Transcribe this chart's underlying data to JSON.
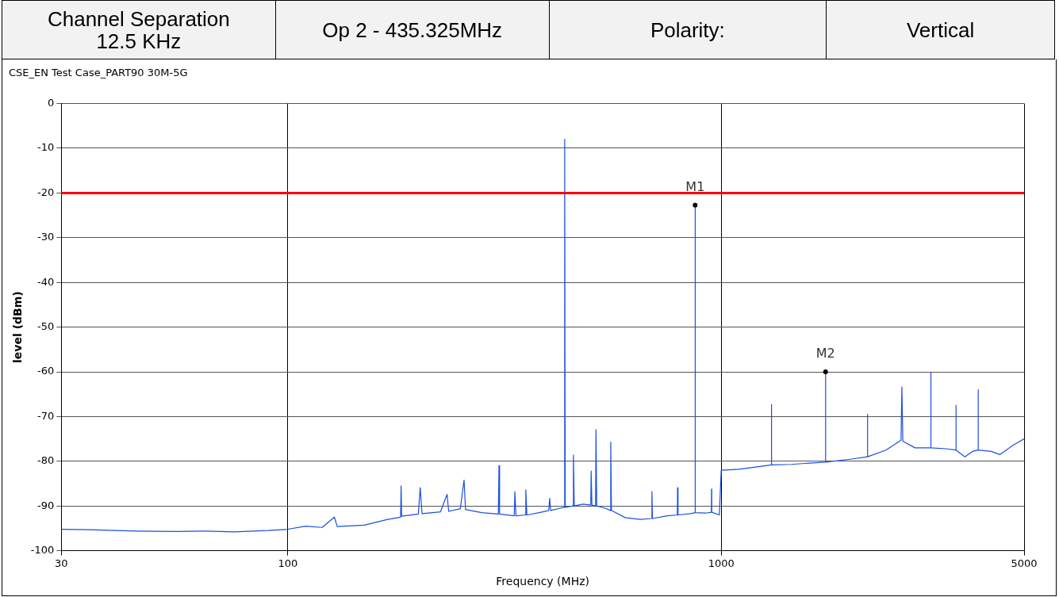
{
  "chart_data": {
    "type": "line",
    "title": "CSE_EN Test Case_PART90 30M-5G",
    "xlabel": "Frequency (MHz)",
    "ylabel": "level (dBm)",
    "log": "x",
    "grid": true,
    "legend": false,
    "xlim": [
      30,
      5000
    ],
    "xticks": [
      30,
      100,
      1000,
      5000
    ],
    "ylim": [
      -100,
      0
    ],
    "yticks": [
      0,
      -10,
      -20,
      -30,
      -40,
      -50,
      -60,
      -70,
      -80,
      -90,
      -100
    ],
    "ref_lines": [
      {
        "axis": "y",
        "value": -20,
        "color": "#ff0000"
      }
    ],
    "annotations": [
      "Channel Separation\n12.5 KHz",
      "Op 2 - 435.325MHz",
      "Polarity:",
      "Vertical",
      {
        "text": "M1",
        "x": 870.6,
        "y": -22.7
      },
      {
        "text": "M2",
        "x": 1741,
        "y": -60
      }
    ],
    "series": [
      {
        "color": "#1a4fe0",
        "x": [
          30,
          35,
          40,
          45,
          55,
          65,
          75,
          90,
          100,
          110,
          120,
          128,
          130,
          150,
          170,
          182,
          182.5,
          183,
          200,
          202,
          204,
          225,
          233,
          235,
          250,
          255,
          257,
          280,
          306,
          307,
          308,
          333,
          334,
          336,
          353,
          354,
          356,
          380,
          400,
          402,
          404,
          425,
          434,
          435.3,
          436.5,
          455,
          456,
          458,
          480,
          500,
          501,
          503,
          513,
          514,
          516,
          540,
          555,
          556,
          558,
          600,
          650,
          691,
          692,
          694,
          750,
          792,
          793,
          795,
          850,
          869.5,
          870.6,
          871.5,
          920,
          949,
          950,
          951,
          990,
          1000,
          1100,
          1200,
          1305,
          1306,
          1307,
          1450,
          1600,
          1740,
          1741,
          1742,
          2000,
          2175,
          2176,
          2177,
          2400,
          2600,
          2612,
          2625,
          2800,
          3046,
          3047,
          3048,
          3300,
          3481,
          3482,
          3483,
          3650,
          3800,
          3917,
          3918,
          3919,
          4200,
          4400,
          4700,
          5000
        ],
        "values": [
          -95.2,
          -95.3,
          -95.5,
          -95.6,
          -95.7,
          -95.6,
          -95.8,
          -95.5,
          -95.2,
          -94.5,
          -94.8,
          -92.5,
          -94.6,
          -94.3,
          -93,
          -92.5,
          -85.5,
          -92.3,
          -91.8,
          -85.9,
          -91.7,
          -91.3,
          -87.4,
          -91.2,
          -90.6,
          -84.2,
          -90.8,
          -91.5,
          -91.8,
          -81,
          -91.8,
          -92.2,
          -86.8,
          -92.2,
          -92,
          -86.4,
          -92,
          -91.5,
          -91,
          -88.3,
          -91,
          -90.5,
          -90.3,
          -8,
          -90.3,
          -90,
          -78.6,
          -90,
          -89.6,
          -89.8,
          -82.2,
          -89.8,
          -90,
          -72.9,
          -90,
          -90.5,
          -91,
          -75.7,
          -91,
          -92.6,
          -93,
          -92.8,
          -86.8,
          -92.8,
          -92.2,
          -92,
          -85.9,
          -92,
          -91.7,
          -91.5,
          -22.7,
          -91.5,
          -91.6,
          -91.4,
          -86.2,
          -91.4,
          -92,
          -82,
          -81.8,
          -81.3,
          -80.8,
          -67.3,
          -80.8,
          -80.7,
          -80.4,
          -80.2,
          -60,
          -80.2,
          -79.5,
          -79,
          -69.5,
          -79,
          -77.5,
          -75.3,
          -63.4,
          -75.5,
          -77,
          -77,
          -60.2,
          -77,
          -77.2,
          -77.5,
          -67.5,
          -77.5,
          -79,
          -77.8,
          -77.5,
          -64,
          -77.5,
          -77.8,
          -78.5,
          -76.5,
          -75
        ]
      }
    ]
  }
}
